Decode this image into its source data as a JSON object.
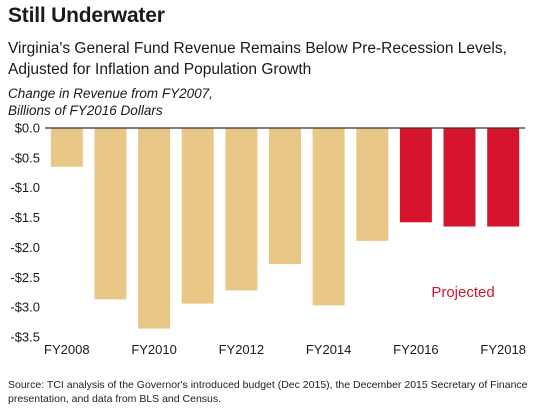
{
  "title": "Still Underwater",
  "subtitle": "Virginia's General Fund Revenue Remains Below Pre-Recession Levels, Adjusted for Inflation and Population Growth",
  "ylabel_line1": "Change in Revenue from FY2007,",
  "ylabel_line2": "Billions of FY2016 Dollars",
  "source": "Source: TCI analysis of the Governor's introduced budget (Dec 2015), the December 2015 Secretary of Finance presentation, and data from BLS and Census.",
  "colors": {
    "actual": "#E9C887",
    "projected": "#D7142D",
    "axis": "#333333"
  },
  "chart_data": {
    "type": "bar",
    "categories": [
      "FY2008",
      "FY2009",
      "FY2010",
      "FY2011",
      "FY2012",
      "FY2013",
      "FY2014",
      "FY2015",
      "FY2016",
      "FY2017",
      "FY2018"
    ],
    "tick_labels_shown": [
      "FY2008",
      "FY2010",
      "FY2012",
      "FY2014",
      "FY2016",
      "FY2018"
    ],
    "values": [
      -0.65,
      -2.87,
      -3.36,
      -2.94,
      -2.72,
      -2.28,
      -2.97,
      -1.89,
      -1.58,
      -1.65,
      -1.65
    ],
    "projected": [
      false,
      false,
      false,
      false,
      false,
      false,
      false,
      false,
      true,
      true,
      true
    ],
    "ylim": [
      -3.5,
      0.0
    ],
    "yticks": [
      "$0.0",
      "-$0.5",
      "-$1.0",
      "-$1.5",
      "-$2.0",
      "-$2.5",
      "-$3.0",
      "-$3.5"
    ],
    "annotation": "Projected",
    "grid": false
  }
}
